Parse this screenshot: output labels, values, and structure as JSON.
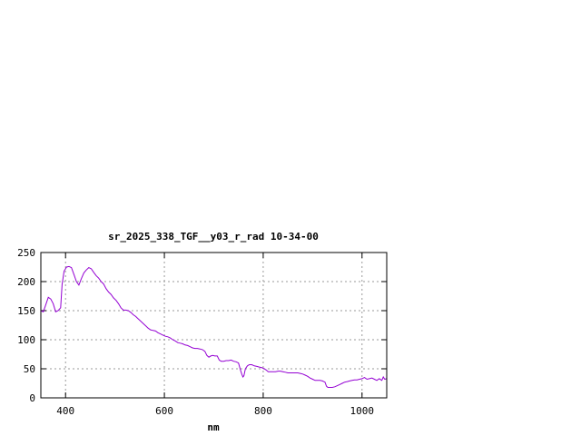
{
  "chart_data": {
    "type": "line",
    "title": "sr_2025_338_TGF__y03_r_rad 10-34-00",
    "xlabel": "nm",
    "ylabel": "",
    "xlim": [
      350,
      1050
    ],
    "ylim": [
      0,
      250
    ],
    "xticks": [
      400,
      600,
      800,
      1000
    ],
    "yticks": [
      0,
      50,
      100,
      150,
      200,
      250
    ],
    "grid": true,
    "legend": "none",
    "series": [
      {
        "color": "#9400d3",
        "points": [
          [
            350,
            150
          ],
          [
            355,
            148
          ],
          [
            360,
            160
          ],
          [
            365,
            173
          ],
          [
            370,
            170
          ],
          [
            375,
            162
          ],
          [
            380,
            148
          ],
          [
            385,
            150
          ],
          [
            390,
            155
          ],
          [
            393,
            195
          ],
          [
            397,
            218
          ],
          [
            402,
            225
          ],
          [
            407,
            226
          ],
          [
            412,
            224
          ],
          [
            417,
            212
          ],
          [
            422,
            200
          ],
          [
            427,
            194
          ],
          [
            432,
            205
          ],
          [
            437,
            215
          ],
          [
            442,
            220
          ],
          [
            447,
            224
          ],
          [
            452,
            222
          ],
          [
            457,
            216
          ],
          [
            462,
            210
          ],
          [
            467,
            206
          ],
          [
            472,
            200
          ],
          [
            477,
            196
          ],
          [
            482,
            188
          ],
          [
            487,
            182
          ],
          [
            492,
            178
          ],
          [
            497,
            172
          ],
          [
            502,
            168
          ],
          [
            507,
            162
          ],
          [
            512,
            155
          ],
          [
            517,
            151
          ],
          [
            522,
            151
          ],
          [
            527,
            150
          ],
          [
            532,
            147
          ],
          [
            537,
            143
          ],
          [
            542,
            140
          ],
          [
            547,
            136
          ],
          [
            552,
            132
          ],
          [
            557,
            128
          ],
          [
            562,
            124
          ],
          [
            567,
            120
          ],
          [
            572,
            117
          ],
          [
            577,
            116
          ],
          [
            582,
            115
          ],
          [
            587,
            112
          ],
          [
            592,
            110
          ],
          [
            597,
            108
          ],
          [
            602,
            106
          ],
          [
            607,
            105
          ],
          [
            612,
            103
          ],
          [
            617,
            100
          ],
          [
            622,
            98
          ],
          [
            627,
            95
          ],
          [
            632,
            94
          ],
          [
            637,
            93
          ],
          [
            642,
            91
          ],
          [
            647,
            90
          ],
          [
            652,
            88
          ],
          [
            657,
            86
          ],
          [
            662,
            85
          ],
          [
            667,
            85
          ],
          [
            672,
            84
          ],
          [
            677,
            83
          ],
          [
            682,
            80
          ],
          [
            686,
            73
          ],
          [
            690,
            70
          ],
          [
            694,
            72
          ],
          [
            698,
            73
          ],
          [
            702,
            72
          ],
          [
            707,
            72
          ],
          [
            711,
            65
          ],
          [
            715,
            63
          ],
          [
            720,
            63
          ],
          [
            725,
            64
          ],
          [
            730,
            64
          ],
          [
            735,
            65
          ],
          [
            740,
            63
          ],
          [
            745,
            62
          ],
          [
            750,
            60
          ],
          [
            754,
            48
          ],
          [
            757,
            40
          ],
          [
            759,
            36
          ],
          [
            761,
            38
          ],
          [
            764,
            50
          ],
          [
            768,
            55
          ],
          [
            772,
            57
          ],
          [
            777,
            57
          ],
          [
            782,
            55
          ],
          [
            787,
            54
          ],
          [
            792,
            53
          ],
          [
            797,
            52
          ],
          [
            802,
            50
          ],
          [
            806,
            48
          ],
          [
            810,
            45
          ],
          [
            815,
            45
          ],
          [
            820,
            45
          ],
          [
            825,
            45
          ],
          [
            830,
            46
          ],
          [
            835,
            46
          ],
          [
            840,
            45
          ],
          [
            845,
            44
          ],
          [
            850,
            43
          ],
          [
            855,
            43
          ],
          [
            860,
            43
          ],
          [
            865,
            43
          ],
          [
            870,
            43
          ],
          [
            875,
            42
          ],
          [
            880,
            41
          ],
          [
            885,
            39
          ],
          [
            890,
            37
          ],
          [
            895,
            34
          ],
          [
            900,
            32
          ],
          [
            905,
            30
          ],
          [
            910,
            30
          ],
          [
            915,
            30
          ],
          [
            920,
            29
          ],
          [
            925,
            27
          ],
          [
            928,
            20
          ],
          [
            931,
            18
          ],
          [
            935,
            18
          ],
          [
            940,
            18
          ],
          [
            945,
            19
          ],
          [
            950,
            21
          ],
          [
            955,
            23
          ],
          [
            960,
            25
          ],
          [
            965,
            27
          ],
          [
            970,
            28
          ],
          [
            975,
            29
          ],
          [
            980,
            30
          ],
          [
            985,
            31
          ],
          [
            990,
            31
          ],
          [
            995,
            32
          ],
          [
            1000,
            33
          ],
          [
            1005,
            35
          ],
          [
            1010,
            32
          ],
          [
            1015,
            33
          ],
          [
            1020,
            34
          ],
          [
            1025,
            32
          ],
          [
            1030,
            30
          ],
          [
            1035,
            33
          ],
          [
            1040,
            30
          ],
          [
            1043,
            36
          ],
          [
            1046,
            32
          ],
          [
            1050,
            33
          ]
        ]
      }
    ]
  }
}
